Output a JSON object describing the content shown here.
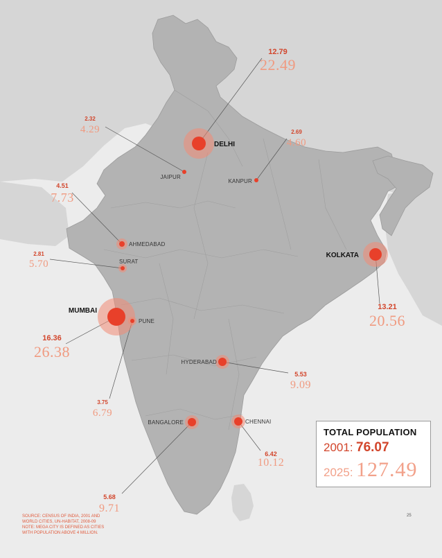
{
  "cities": [
    {
      "id": "delhi",
      "name": "DELHI",
      "v2001": "12.79",
      "v2025": "22.49",
      "bold": true
    },
    {
      "id": "jaipur",
      "name": "JAIPUR",
      "v2001": "2.32",
      "v2025": "4.29",
      "bold": false
    },
    {
      "id": "kanpur",
      "name": "KANPUR",
      "v2001": "2.69",
      "v2025": "4.60",
      "bold": false
    },
    {
      "id": "ahmedabad",
      "name": "AHMEDABAD",
      "v2001": "4.51",
      "v2025": "7.73",
      "bold": false
    },
    {
      "id": "surat",
      "name": "SURAT",
      "v2001": "2.81",
      "v2025": "5.70",
      "bold": false
    },
    {
      "id": "kolkata",
      "name": "KOLKATA",
      "v2001": "13.21",
      "v2025": "20.56",
      "bold": true
    },
    {
      "id": "mumbai",
      "name": "MUMBAI",
      "v2001": "16.36",
      "v2025": "26.38",
      "bold": true
    },
    {
      "id": "pune",
      "name": "PUNE",
      "v2001": "3.75",
      "v2025": "6.79",
      "bold": false
    },
    {
      "id": "hyderabad",
      "name": "HYDERABAD",
      "v2001": "5.53",
      "v2025": "9.09",
      "bold": false
    },
    {
      "id": "bangalore",
      "name": "BANGALORE",
      "v2001": "5.68",
      "v2025": "9.71",
      "bold": false
    },
    {
      "id": "chennai",
      "name": "CHENNAI",
      "v2001": "6.42",
      "v2025": "10.12",
      "bold": false
    }
  ],
  "total": {
    "title": "TOTAL POPULATION",
    "year1": "2001:",
    "value1": "76.07",
    "year2": "2025:",
    "value2": "127.49"
  },
  "source_lines": [
    "SOURCE: CENSUS OF INDIA, 2001 AND",
    "WORLD CITIES, UN-HABITAT, 2008-09",
    "NOTE: MEGA CITY IS DEFINED AS CITIES",
    "WITH POPULATION ABOVE 4 MILLION."
  ],
  "page_number": "25",
  "colors": {
    "land": "#b5b5b5",
    "neighbor": "#d4d4d4",
    "sea": "#ececec",
    "marker": "#e8402a",
    "halo": "#f28a74",
    "value2001": "#d2452b",
    "value2025": "#f09a80"
  }
}
